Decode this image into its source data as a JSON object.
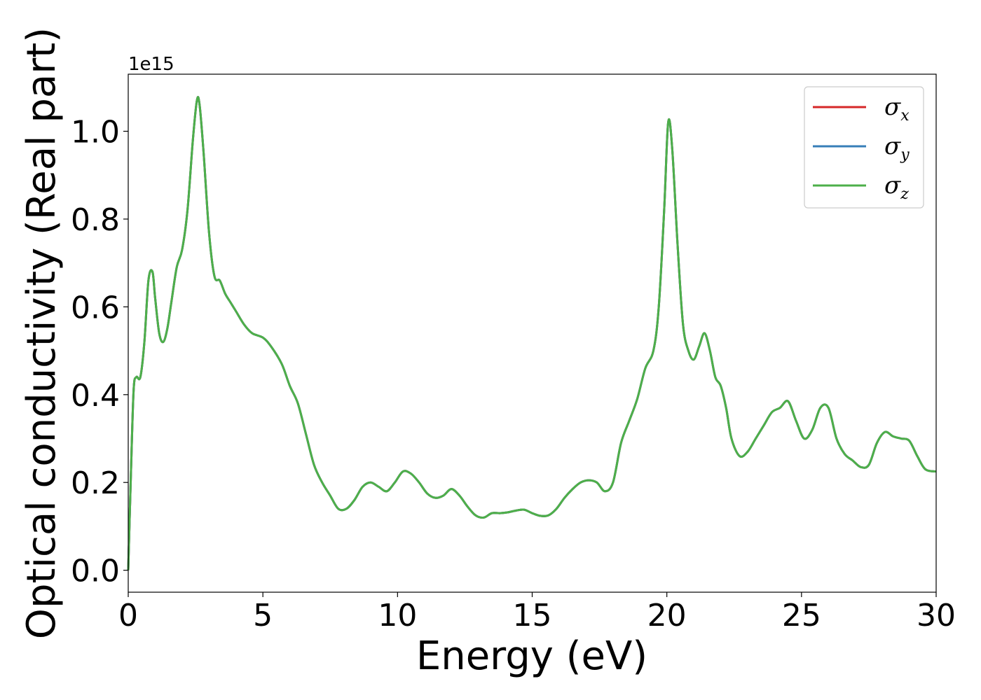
{
  "chart_data": {
    "type": "line",
    "title": "",
    "xlabel": "Energy (eV)",
    "ylabel": "Optical conductivity (Real part)",
    "y_offset_label": "1e15",
    "xlim": [
      0,
      30
    ],
    "ylim": [
      -0.05,
      1.13
    ],
    "x_ticks": [
      0,
      5,
      10,
      15,
      20,
      25,
      30
    ],
    "x_tick_labels": [
      "0",
      "5",
      "10",
      "15",
      "20",
      "25",
      "30"
    ],
    "y_ticks": [
      0.0,
      0.2,
      0.4,
      0.6,
      0.8,
      1.0
    ],
    "y_tick_labels": [
      "0.0",
      "0.2",
      "0.4",
      "0.6",
      "0.8",
      "1.0"
    ],
    "grid": false,
    "legend_position": "top-right",
    "colors": {
      "sigma_x": "#d62728",
      "sigma_y": "#377eb8",
      "sigma_z": "#4daf4a"
    },
    "series": [
      {
        "name": "σx",
        "legend_base": "σ",
        "legend_sub": "x",
        "color": "#d62728"
      },
      {
        "name": "σy",
        "legend_base": "σ",
        "legend_sub": "y",
        "color": "#377eb8"
      },
      {
        "name": "σz",
        "legend_base": "σ",
        "legend_sub": "z",
        "color": "#4daf4a"
      }
    ],
    "x": [
      0,
      0.1,
      0.2,
      0.3,
      0.45,
      0.6,
      0.75,
      0.9,
      1.0,
      1.15,
      1.3,
      1.45,
      1.6,
      1.8,
      2.0,
      2.2,
      2.4,
      2.55,
      2.65,
      2.8,
      3.0,
      3.2,
      3.4,
      3.6,
      3.8,
      4.0,
      4.3,
      4.6,
      5.0,
      5.3,
      5.7,
      6.0,
      6.3,
      6.6,
      6.9,
      7.2,
      7.5,
      7.8,
      8.1,
      8.4,
      8.7,
      9.0,
      9.3,
      9.6,
      9.9,
      10.2,
      10.5,
      10.8,
      11.1,
      11.4,
      11.7,
      12.0,
      12.3,
      12.6,
      12.9,
      13.2,
      13.5,
      13.8,
      14.1,
      14.4,
      14.7,
      15.0,
      15.3,
      15.6,
      15.9,
      16.2,
      16.5,
      16.8,
      17.1,
      17.4,
      17.7,
      18.0,
      18.3,
      18.6,
      18.9,
      19.2,
      19.5,
      19.7,
      19.9,
      20.05,
      20.2,
      20.4,
      20.6,
      20.8,
      21.0,
      21.2,
      21.4,
      21.6,
      21.8,
      22.0,
      22.2,
      22.4,
      22.7,
      23.0,
      23.3,
      23.6,
      23.9,
      24.2,
      24.5,
      24.8,
      25.1,
      25.4,
      25.7,
      26.0,
      26.3,
      26.6,
      26.9,
      27.2,
      27.5,
      27.8,
      28.1,
      28.4,
      28.7,
      29.0,
      29.3,
      29.6,
      30.0
    ],
    "values": [
      0.0,
      0.22,
      0.41,
      0.44,
      0.44,
      0.52,
      0.66,
      0.68,
      0.62,
      0.54,
      0.52,
      0.55,
      0.61,
      0.69,
      0.73,
      0.82,
      0.98,
      1.07,
      1.06,
      0.95,
      0.77,
      0.67,
      0.66,
      0.63,
      0.61,
      0.59,
      0.56,
      0.54,
      0.53,
      0.51,
      0.47,
      0.42,
      0.38,
      0.31,
      0.24,
      0.2,
      0.17,
      0.14,
      0.14,
      0.16,
      0.19,
      0.2,
      0.19,
      0.18,
      0.2,
      0.225,
      0.22,
      0.2,
      0.175,
      0.165,
      0.17,
      0.185,
      0.17,
      0.145,
      0.125,
      0.12,
      0.13,
      0.13,
      0.132,
      0.136,
      0.138,
      0.13,
      0.124,
      0.125,
      0.14,
      0.165,
      0.185,
      0.2,
      0.205,
      0.2,
      0.18,
      0.2,
      0.29,
      0.34,
      0.39,
      0.46,
      0.5,
      0.6,
      0.82,
      1.02,
      0.96,
      0.74,
      0.56,
      0.5,
      0.48,
      0.51,
      0.54,
      0.5,
      0.44,
      0.42,
      0.37,
      0.3,
      0.26,
      0.27,
      0.3,
      0.33,
      0.36,
      0.37,
      0.385,
      0.34,
      0.3,
      0.32,
      0.37,
      0.37,
      0.3,
      0.265,
      0.25,
      0.235,
      0.24,
      0.29,
      0.315,
      0.305,
      0.3,
      0.295,
      0.26,
      0.23,
      0.225
    ]
  }
}
